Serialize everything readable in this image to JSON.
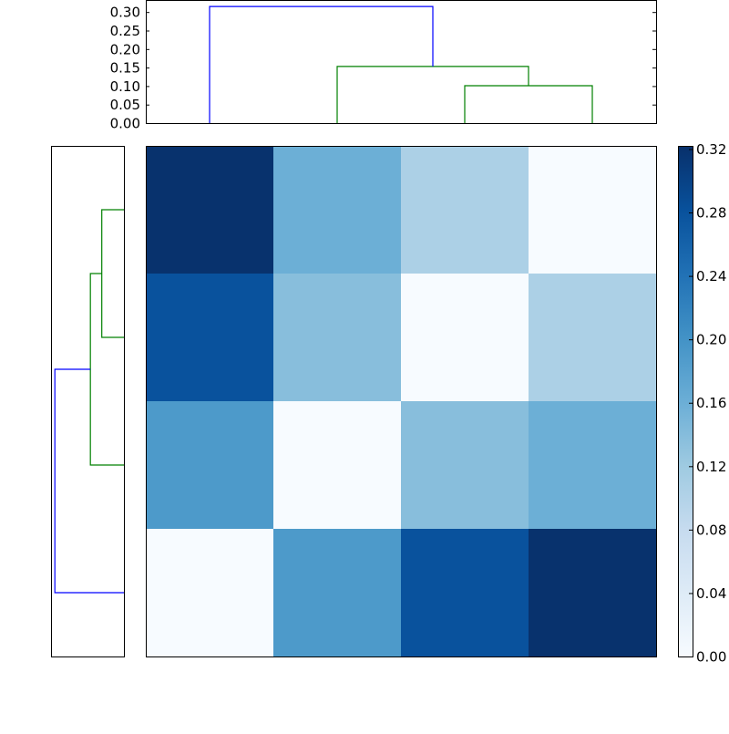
{
  "chart_data": [
    {
      "type": "dendrogram",
      "orientation": "top",
      "ylim": [
        0,
        0.3325
      ],
      "yticks": [
        "0.00",
        "0.05",
        "0.10",
        "0.15",
        "0.20",
        "0.25",
        "0.30"
      ],
      "ytick_values": [
        0,
        0.05,
        0.1,
        0.15,
        0.2,
        0.25,
        0.3
      ],
      "xlim": [
        0,
        40
      ],
      "links": [
        {
          "icoord": [
            25,
            25,
            35,
            35
          ],
          "dcoord": [
            0,
            0.101,
            0.101,
            0
          ],
          "color": "#008000"
        },
        {
          "icoord": [
            15,
            15,
            30,
            30
          ],
          "dcoord": [
            0,
            0.153,
            0.153,
            0.101
          ],
          "color": "#008000"
        },
        {
          "icoord": [
            5,
            5,
            22.5,
            22.5
          ],
          "dcoord": [
            0,
            0.315,
            0.315,
            0.153
          ],
          "color": "#0000ff"
        }
      ]
    },
    {
      "type": "dendrogram",
      "orientation": "left",
      "xlim": [
        0.3325,
        0
      ],
      "ylim": [
        0,
        40
      ],
      "links": [
        {
          "icoord": [
            25,
            25,
            35,
            35
          ],
          "dcoord": [
            0,
            0.101,
            0.101,
            0
          ],
          "color": "#008000"
        },
        {
          "icoord": [
            15,
            15,
            30,
            30
          ],
          "dcoord": [
            0,
            0.153,
            0.153,
            0.101
          ],
          "color": "#008000"
        },
        {
          "icoord": [
            5,
            5,
            22.5,
            22.5
          ],
          "dcoord": [
            0,
            0.315,
            0.315,
            0.153
          ],
          "color": "#0000ff"
        }
      ]
    },
    {
      "type": "heatmap",
      "colormap": "Blues",
      "vmin": 0,
      "vmax": 0.322,
      "rows": [
        [
          0.32,
          0.16,
          0.107,
          0.0
        ],
        [
          0.28,
          0.138,
          0.0,
          0.107
        ],
        [
          0.19,
          0.0,
          0.138,
          0.16
        ],
        [
          0.0,
          0.19,
          0.28,
          0.32
        ]
      ],
      "colorbar_ticks": [
        "0.00",
        "0.04",
        "0.08",
        "0.12",
        "0.16",
        "0.20",
        "0.24",
        "0.28",
        "0.32"
      ],
      "colorbar_tick_values": [
        0,
        0.04,
        0.08,
        0.12,
        0.16,
        0.2,
        0.24,
        0.28,
        0.32
      ],
      "colormap_stops": [
        "#f7fbff",
        "#deebf7",
        "#c6dbef",
        "#9ecae1",
        "#6baed6",
        "#4292c6",
        "#2171b5",
        "#08519c",
        "#08306b"
      ]
    }
  ]
}
